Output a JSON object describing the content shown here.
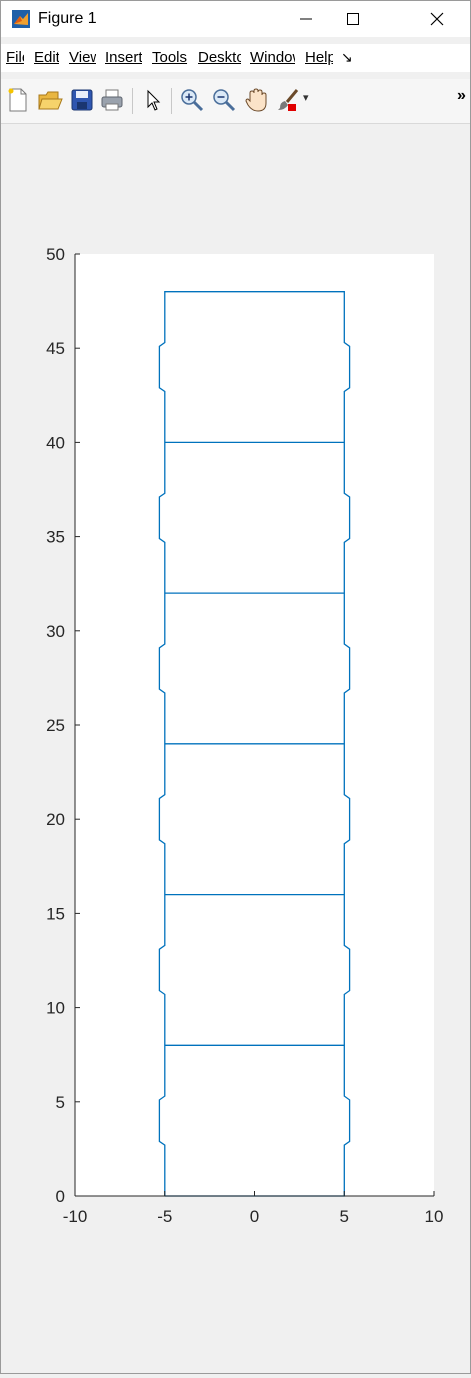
{
  "window": {
    "title": "Figure 1",
    "controls": {
      "minimize": "—",
      "maximize": "☐",
      "close": "✕"
    }
  },
  "menubar": {
    "items": [
      "File",
      "Edit",
      "View",
      "Insert",
      "Tools",
      "Desktop",
      "Window",
      "Help"
    ],
    "overflow": "↘"
  },
  "toolbar": {
    "buttons": [
      "new-figure-icon",
      "open-file-icon",
      "save-icon",
      "print-icon",
      "pointer-icon",
      "zoom-in-icon",
      "zoom-out-icon",
      "pan-hand-icon",
      "brush-icon"
    ],
    "overflow": "»",
    "brush_dropdown": "▾"
  },
  "colors": {
    "line": "#0072BD",
    "axes_bg": "#ffffff",
    "figure_bg": "#f0f0f0"
  },
  "chart_data": {
    "type": "line",
    "title": "",
    "xlabel": "",
    "ylabel": "",
    "xlim": [
      -10,
      10
    ],
    "ylim": [
      0,
      50
    ],
    "xticks": [
      "-10",
      "-5",
      "0",
      "5",
      "10"
    ],
    "yticks": [
      "0",
      "5",
      "10",
      "15",
      "20",
      "25",
      "30",
      "35",
      "40",
      "45",
      "50"
    ],
    "grid": false,
    "series": [
      {
        "x": [
          -5,
          -5,
          -5,
          -5.3,
          -5.3,
          -5,
          -5,
          -5.3,
          -5.3,
          -5,
          -5,
          -5.3,
          -5.3,
          -5,
          -5,
          -5.3,
          -5.3,
          -5,
          -5,
          -5.3,
          -5.3,
          -5,
          -5,
          -5.3,
          -5.3,
          -5,
          -5,
          5,
          5,
          5.3,
          5.3,
          5,
          5,
          5.3,
          5.3,
          5,
          5,
          5.3,
          5.3,
          5,
          5,
          5.3,
          5.3,
          5,
          5,
          5.3,
          5.3,
          5,
          5,
          5.3,
          5.3,
          5,
          5,
          -5
        ],
        "y": [
          0.2,
          0,
          2.7,
          2.9,
          5.1,
          5.3,
          10.7,
          10.9,
          13.1,
          13.3,
          18.7,
          18.9,
          21.1,
          21.3,
          26.7,
          26.9,
          29.1,
          29.3,
          34.7,
          34.9,
          37.1,
          37.3,
          42.7,
          42.9,
          45.1,
          45.3,
          48,
          48,
          45.3,
          45.1,
          42.9,
          42.7,
          37.3,
          37.1,
          34.9,
          34.7,
          29.3,
          29.1,
          26.9,
          26.7,
          21.3,
          21.1,
          18.9,
          18.7,
          13.3,
          13.1,
          10.9,
          10.7,
          5.3,
          5.1,
          2.9,
          2.7,
          0,
          0
        ]
      },
      {
        "x": [
          -5,
          5
        ],
        "y": [
          8,
          8
        ]
      },
      {
        "x": [
          -5,
          5
        ],
        "y": [
          16,
          16
        ]
      },
      {
        "x": [
          -5,
          5
        ],
        "y": [
          24,
          24
        ]
      },
      {
        "x": [
          -5,
          5
        ],
        "y": [
          32,
          32
        ]
      },
      {
        "x": [
          -5,
          5
        ],
        "y": [
          40,
          40
        ]
      }
    ]
  }
}
